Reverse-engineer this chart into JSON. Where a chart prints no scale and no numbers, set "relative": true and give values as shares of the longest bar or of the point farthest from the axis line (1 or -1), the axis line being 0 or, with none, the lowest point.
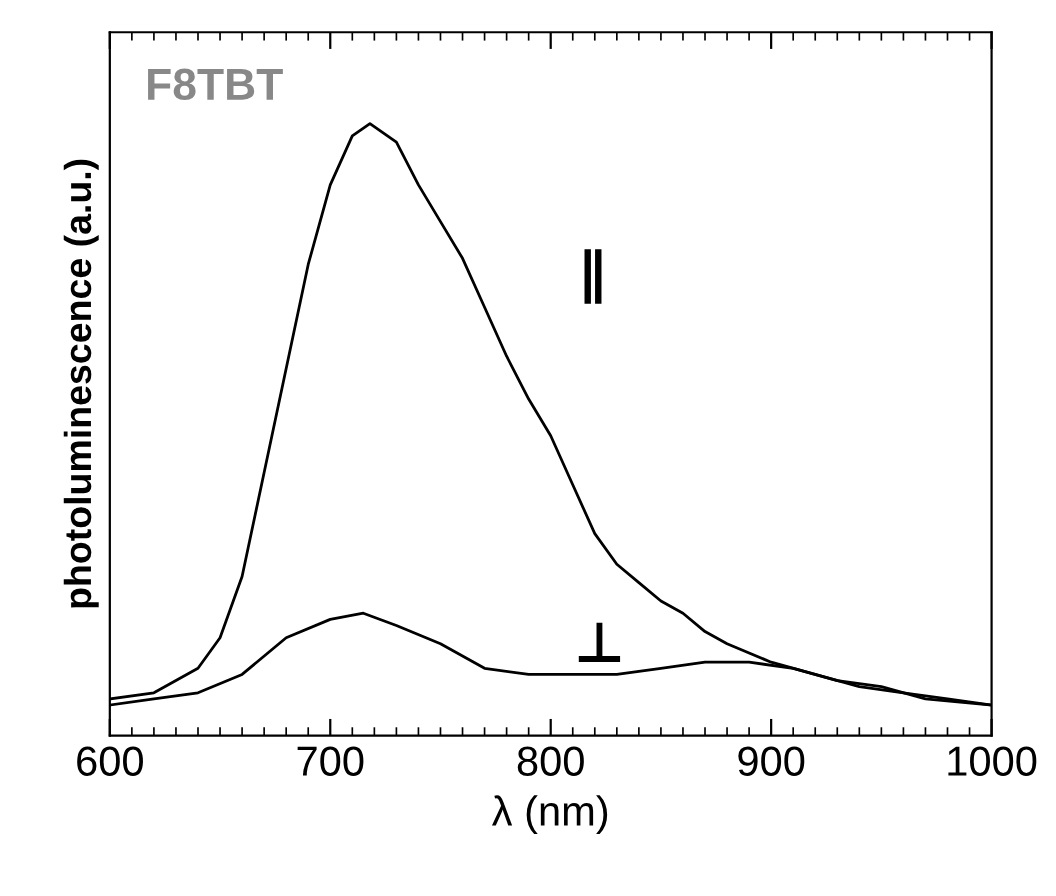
{
  "chart_data": {
    "type": "line",
    "xlabel": "λ (nm)",
    "ylabel": "photoluminescence (a.u.)",
    "relative": true,
    "tick_labels": "x",
    "xlim": [
      600,
      1000
    ],
    "xticks": [
      600,
      700,
      800,
      900,
      1000
    ],
    "annotations": [
      "F8TBT"
    ],
    "series": [
      {
        "name": "∥",
        "color": "#000000",
        "x": [
          600,
          620,
          640,
          650,
          660,
          670,
          680,
          690,
          700,
          710,
          718,
          730,
          740,
          750,
          760,
          770,
          780,
          790,
          800,
          810,
          820,
          830,
          840,
          850,
          860,
          870,
          880,
          900,
          920,
          940,
          960,
          980,
          1000
        ],
        "values": [
          0.06,
          0.07,
          0.11,
          0.16,
          0.26,
          0.43,
          0.6,
          0.77,
          0.9,
          0.98,
          1.0,
          0.97,
          0.9,
          0.84,
          0.78,
          0.7,
          0.62,
          0.55,
          0.49,
          0.41,
          0.33,
          0.28,
          0.25,
          0.22,
          0.2,
          0.17,
          0.15,
          0.12,
          0.1,
          0.08,
          0.07,
          0.06,
          0.05
        ]
      },
      {
        "name": "⊥",
        "color": "#000000",
        "x": [
          600,
          620,
          640,
          660,
          680,
          700,
          715,
          730,
          750,
          770,
          790,
          810,
          830,
          850,
          870,
          890,
          910,
          930,
          950,
          970,
          1000
        ],
        "values": [
          0.05,
          0.06,
          0.07,
          0.1,
          0.16,
          0.19,
          0.2,
          0.18,
          0.15,
          0.11,
          0.1,
          0.1,
          0.1,
          0.11,
          0.12,
          0.12,
          0.11,
          0.09,
          0.08,
          0.06,
          0.05
        ]
      }
    ]
  }
}
